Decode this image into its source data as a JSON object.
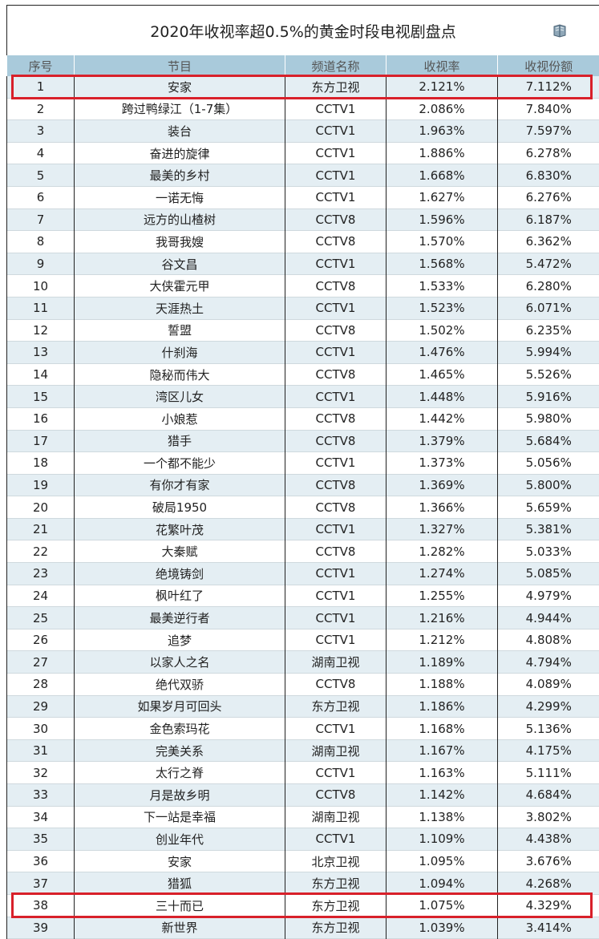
{
  "title": "2020年收视率超0.5%的黄金时段电视剧盘点",
  "icon": "book-icon",
  "highlight_color": "#d8202a",
  "headers": [
    "序号",
    "节目",
    "频道名称",
    "收视率",
    "收视份额"
  ],
  "highlighted_rows": [
    1,
    38
  ],
  "rows": [
    [
      "1",
      "安家",
      "东方卫视",
      "2.121%",
      "7.112%"
    ],
    [
      "2",
      "跨过鸭绿江（1-7集）",
      "CCTV1",
      "2.086%",
      "7.840%"
    ],
    [
      "3",
      "装台",
      "CCTV1",
      "1.963%",
      "7.597%"
    ],
    [
      "4",
      "奋进的旋律",
      "CCTV1",
      "1.886%",
      "6.278%"
    ],
    [
      "5",
      "最美的乡村",
      "CCTV1",
      "1.668%",
      "6.830%"
    ],
    [
      "6",
      "一诺无悔",
      "CCTV1",
      "1.627%",
      "6.276%"
    ],
    [
      "7",
      "远方的山楂树",
      "CCTV8",
      "1.596%",
      "6.187%"
    ],
    [
      "8",
      "我哥我嫂",
      "CCTV8",
      "1.570%",
      "6.362%"
    ],
    [
      "9",
      "谷文昌",
      "CCTV1",
      "1.568%",
      "5.472%"
    ],
    [
      "10",
      "大侠霍元甲",
      "CCTV8",
      "1.533%",
      "6.280%"
    ],
    [
      "11",
      "天涯热土",
      "CCTV1",
      "1.523%",
      "6.071%"
    ],
    [
      "12",
      "誓盟",
      "CCTV8",
      "1.502%",
      "6.235%"
    ],
    [
      "13",
      "什刹海",
      "CCTV1",
      "1.476%",
      "5.994%"
    ],
    [
      "14",
      "隐秘而伟大",
      "CCTV8",
      "1.465%",
      "5.526%"
    ],
    [
      "15",
      "湾区儿女",
      "CCTV1",
      "1.448%",
      "5.916%"
    ],
    [
      "16",
      "小娘惹",
      "CCTV8",
      "1.442%",
      "5.980%"
    ],
    [
      "17",
      "猎手",
      "CCTV8",
      "1.379%",
      "5.684%"
    ],
    [
      "18",
      "一个都不能少",
      "CCTV1",
      "1.373%",
      "5.056%"
    ],
    [
      "19",
      "有你才有家",
      "CCTV8",
      "1.369%",
      "5.800%"
    ],
    [
      "20",
      "破局1950",
      "CCTV8",
      "1.366%",
      "5.659%"
    ],
    [
      "21",
      "花繁叶茂",
      "CCTV1",
      "1.327%",
      "5.381%"
    ],
    [
      "22",
      "大秦赋",
      "CCTV8",
      "1.282%",
      "5.033%"
    ],
    [
      "23",
      "绝境铸剑",
      "CCTV1",
      "1.274%",
      "5.085%"
    ],
    [
      "24",
      "枫叶红了",
      "CCTV1",
      "1.255%",
      "4.979%"
    ],
    [
      "25",
      "最美逆行者",
      "CCTV1",
      "1.216%",
      "4.944%"
    ],
    [
      "26",
      "追梦",
      "CCTV1",
      "1.212%",
      "4.808%"
    ],
    [
      "27",
      "以家人之名",
      "湖南卫视",
      "1.189%",
      "4.794%"
    ],
    [
      "28",
      "绝代双骄",
      "CCTV8",
      "1.188%",
      "4.089%"
    ],
    [
      "29",
      "如果岁月可回头",
      "东方卫视",
      "1.186%",
      "4.299%"
    ],
    [
      "30",
      "金色索玛花",
      "CCTV1",
      "1.168%",
      "5.136%"
    ],
    [
      "31",
      "完美关系",
      "湖南卫视",
      "1.167%",
      "4.175%"
    ],
    [
      "32",
      "太行之脊",
      "CCTV1",
      "1.163%",
      "5.111%"
    ],
    [
      "33",
      "月是故乡明",
      "CCTV8",
      "1.142%",
      "4.684%"
    ],
    [
      "34",
      "下一站是幸福",
      "湖南卫视",
      "1.138%",
      "3.802%"
    ],
    [
      "35",
      "创业年代",
      "CCTV1",
      "1.109%",
      "4.438%"
    ],
    [
      "36",
      "安家",
      "北京卫视",
      "1.095%",
      "3.676%"
    ],
    [
      "37",
      "猎狐",
      "东方卫视",
      "1.094%",
      "4.268%"
    ],
    [
      "38",
      "三十而已",
      "东方卫视",
      "1.075%",
      "4.329%"
    ],
    [
      "39",
      "新世界",
      "东方卫视",
      "1.039%",
      "3.414%"
    ]
  ]
}
